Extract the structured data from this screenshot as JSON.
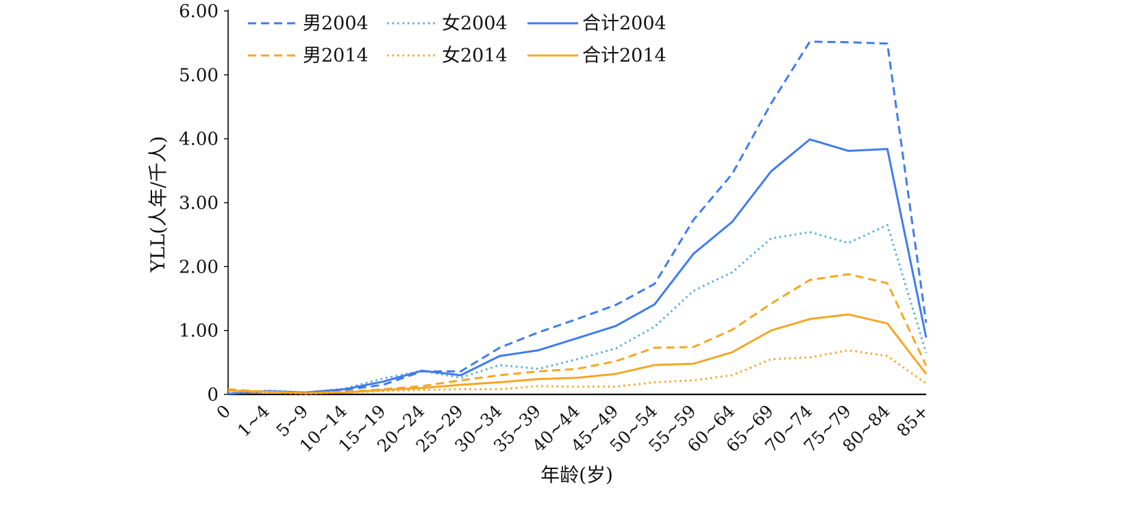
{
  "chart_data": {
    "type": "line",
    "xlabel": "年龄(岁)",
    "ylabel": "YLL(人年/千人)",
    "categories": [
      "0",
      "1~4",
      "5~9",
      "10~14",
      "15~19",
      "20~24",
      "25~29",
      "30~34",
      "35~39",
      "40~44",
      "45~49",
      "50~54",
      "55~59",
      "60~64",
      "65~69",
      "70~74",
      "75~79",
      "80~84",
      "85+"
    ],
    "ylim": [
      0,
      6
    ],
    "yticks": [
      "0",
      "1.00",
      "2.00",
      "3.00",
      "4.00",
      "5.00",
      "6.00"
    ],
    "grid": false,
    "legend_position": "top-left",
    "series": [
      {
        "name": "男2004",
        "color": "#3F7BF0",
        "dash": "dashed",
        "values": [
          0.01,
          0.04,
          0.03,
          0.07,
          0.15,
          0.36,
          0.36,
          0.73,
          0.97,
          1.18,
          1.4,
          1.73,
          2.73,
          3.45,
          4.55,
          5.52,
          5.51,
          5.49,
          1.12
        ]
      },
      {
        "name": "女2004",
        "color": "#53A9E8",
        "dash": "dotted",
        "values": [
          0.01,
          0.06,
          0.03,
          0.09,
          0.25,
          0.37,
          0.26,
          0.46,
          0.4,
          0.55,
          0.72,
          1.06,
          1.62,
          1.91,
          2.44,
          2.54,
          2.37,
          2.65,
          0.65
        ]
      },
      {
        "name": "合计2004",
        "color": "#3F7BF0",
        "dash": "solid",
        "values": [
          0.01,
          0.05,
          0.03,
          0.08,
          0.2,
          0.37,
          0.3,
          0.6,
          0.69,
          0.88,
          1.07,
          1.41,
          2.2,
          2.7,
          3.49,
          3.99,
          3.81,
          3.84,
          0.89
        ]
      },
      {
        "name": "男2014",
        "color": "#F5A623",
        "dash": "dashed",
        "values": [
          0.08,
          0.04,
          0.02,
          0.04,
          0.08,
          0.13,
          0.22,
          0.3,
          0.36,
          0.4,
          0.52,
          0.73,
          0.74,
          1.01,
          1.42,
          1.79,
          1.88,
          1.74,
          0.45
        ]
      },
      {
        "name": "女2014",
        "color": "#F5A623",
        "dash": "dotted",
        "values": [
          0.05,
          0.03,
          0.01,
          0.03,
          0.05,
          0.07,
          0.08,
          0.08,
          0.13,
          0.12,
          0.12,
          0.19,
          0.22,
          0.3,
          0.55,
          0.58,
          0.69,
          0.6,
          0.17
        ]
      },
      {
        "name": "合计2014",
        "color": "#F5A623",
        "dash": "solid",
        "values": [
          0.06,
          0.04,
          0.02,
          0.03,
          0.07,
          0.1,
          0.15,
          0.19,
          0.24,
          0.26,
          0.32,
          0.46,
          0.48,
          0.66,
          1.0,
          1.18,
          1.25,
          1.11,
          0.32
        ]
      }
    ]
  }
}
